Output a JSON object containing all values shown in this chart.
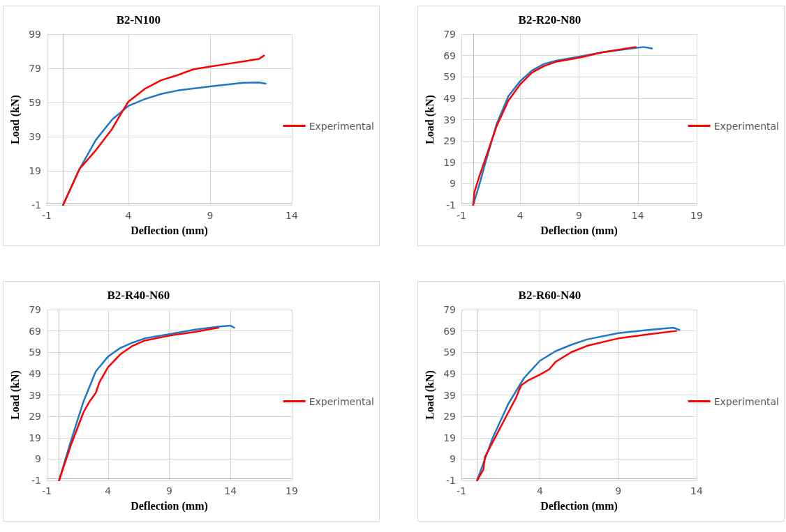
{
  "chart_data": [
    {
      "type": "line",
      "title": "B2-N100",
      "xlabel": "Deflection (mm)",
      "ylabel": "Load (kN)",
      "xlim": [
        -1,
        14
      ],
      "xticks": [
        -1,
        4,
        9,
        14
      ],
      "ylim": [
        -1,
        99
      ],
      "yticks": [
        -1,
        19,
        39,
        59,
        79,
        99
      ],
      "grid": true,
      "legend": "right",
      "marker": "none",
      "line_style": "solid",
      "series": [
        {
          "color": "#1f77c8",
          "x": [
            0,
            1,
            2,
            3,
            4,
            5,
            6,
            7,
            9,
            11,
            12,
            12.4
          ],
          "values": [
            -1,
            20,
            37,
            49,
            57,
            61,
            64,
            66,
            68.4,
            70.5,
            70.7,
            70
          ]
        },
        {
          "name": "Experimental",
          "color": "#ff0000",
          "x": [
            0,
            1,
            2,
            3,
            3.7,
            4,
            5,
            6,
            7,
            8,
            9,
            10,
            11,
            12,
            12.3
          ],
          "values": [
            -1,
            20,
            31,
            43.5,
            55,
            59.5,
            67,
            72,
            75,
            78.5,
            80,
            81.5,
            83,
            84.5,
            86.5
          ]
        }
      ]
    },
    {
      "type": "line",
      "title": "B2-R20-N80",
      "xlabel": "Deflection (mm)",
      "ylabel": "Load (kN)",
      "xlim": [
        -1,
        19
      ],
      "xticks": [
        -1,
        4,
        9,
        14,
        19
      ],
      "ylim": [
        -1,
        79
      ],
      "yticks": [
        -1,
        9,
        19,
        29,
        39,
        49,
        59,
        69,
        79
      ],
      "grid": true,
      "legend": "right",
      "marker": "none",
      "line_style": "solid",
      "series": [
        {
          "color": "#1f77c8",
          "x": [
            0,
            0.5,
            1,
            2,
            3,
            4,
            5,
            6,
            7,
            9,
            11,
            13,
            14.5,
            15.2
          ],
          "values": [
            -1,
            8,
            18,
            37,
            50,
            57,
            62,
            65,
            66.5,
            68.5,
            70.5,
            72,
            73,
            72.3
          ]
        },
        {
          "name": "Experimental",
          "color": "#ff0000",
          "x": [
            0,
            0.1,
            0.5,
            1,
            2,
            3,
            4,
            5,
            6,
            7,
            9,
            11,
            13.8
          ],
          "values": [
            -1,
            5,
            12,
            20,
            36,
            48,
            55.5,
            61,
            64,
            66,
            68,
            70.5,
            73
          ]
        }
      ]
    },
    {
      "type": "line",
      "title": "B2-R40-N60",
      "xlabel": "Deflection (mm)",
      "ylabel": "Load (kN)",
      "xlim": [
        -1,
        19
      ],
      "xticks": [
        -1,
        4,
        9,
        14,
        19
      ],
      "ylim": [
        -1,
        79
      ],
      "yticks": [
        -1,
        9,
        19,
        29,
        39,
        49,
        59,
        69,
        79
      ],
      "grid": true,
      "legend": "right",
      "marker": "none",
      "line_style": "solid",
      "series": [
        {
          "color": "#1f77c8",
          "x": [
            0,
            1,
            2,
            3,
            4,
            5,
            6,
            7,
            9,
            11,
            13,
            14,
            14.3
          ],
          "values": [
            -1,
            18,
            36,
            50,
            57,
            61,
            63.5,
            65.5,
            67.5,
            69.5,
            71,
            71.5,
            70.5
          ]
        },
        {
          "name": "Experimental",
          "color": "#ff0000",
          "x": [
            0,
            1,
            2,
            2.5,
            3,
            3.3,
            4,
            5,
            6,
            7,
            9,
            11,
            13
          ],
          "values": [
            -1,
            16,
            31,
            36,
            40,
            45,
            52,
            58,
            62,
            64.5,
            66.8,
            68.5,
            70.5
          ]
        }
      ]
    },
    {
      "type": "line",
      "title": "B2-R60-N40",
      "xlabel": "Deflection (mm)",
      "ylabel": "Load (kN)",
      "xlim": [
        -1,
        14
      ],
      "xticks": [
        -1,
        4,
        9,
        14
      ],
      "ylim": [
        -1,
        79
      ],
      "yticks": [
        -1,
        9,
        19,
        29,
        39,
        49,
        59,
        69,
        79
      ],
      "grid": true,
      "legend": "right",
      "marker": "none",
      "line_style": "solid",
      "series": [
        {
          "color": "#1f77c8",
          "x": [
            0,
            0.5,
            1,
            2,
            3,
            4,
            5,
            6,
            7,
            9,
            11,
            12.5,
            12.9
          ],
          "values": [
            -1,
            9,
            19,
            35,
            47,
            55,
            59.5,
            62.5,
            65,
            68,
            69.5,
            70.5,
            69.5
          ]
        },
        {
          "name": "Experimental",
          "color": "#ff0000",
          "x": [
            0,
            0.4,
            0.5,
            1,
            2,
            2.5,
            2.8,
            3.3,
            4,
            4.6,
            5,
            6,
            7,
            9,
            11,
            12.7
          ],
          "values": [
            -1,
            4,
            10,
            17,
            31,
            38,
            43.5,
            46,
            48.5,
            51,
            54.5,
            59,
            62,
            65.5,
            67.5,
            69
          ]
        }
      ]
    }
  ]
}
